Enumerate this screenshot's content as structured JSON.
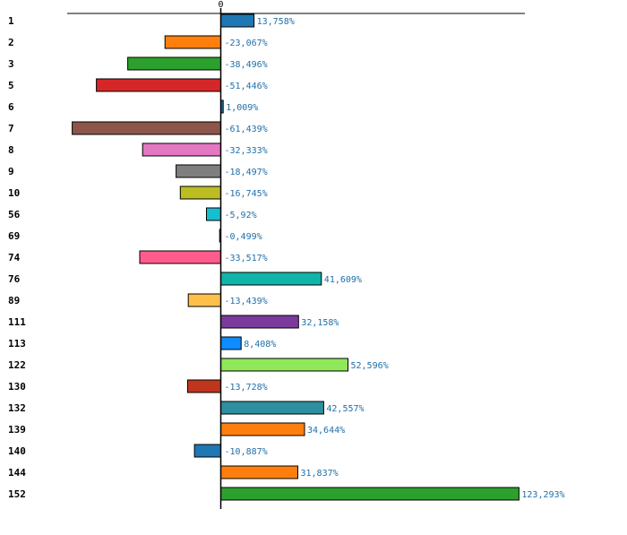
{
  "chart_data": {
    "type": "bar",
    "orientation": "horizontal",
    "title": "",
    "xlabel": "",
    "ylabel": "",
    "axis_tick_label": "0",
    "grid": false,
    "legend": "none",
    "categories": [
      "1",
      "2",
      "3",
      "5",
      "6",
      "7",
      "8",
      "9",
      "10",
      "56",
      "69",
      "74",
      "76",
      "89",
      "111",
      "113",
      "122",
      "130",
      "132",
      "139",
      "140",
      "144",
      "152"
    ],
    "values": [
      13.758,
      -23.067,
      -38.496,
      -51.446,
      1.009,
      -61.439,
      -32.333,
      -18.497,
      -16.745,
      -5.92,
      -0.499,
      -33.517,
      41.609,
      -13.439,
      32.158,
      8.408,
      52.596,
      -13.728,
      42.557,
      34.644,
      -10.887,
      31.837,
      123.293
    ],
    "value_labels": [
      "13,758%",
      "-23,067%",
      "-38,496%",
      "-51,446%",
      "1,009%",
      "-61,439%",
      "-32,333%",
      "-18,497%",
      "-16,745%",
      "-5,92%",
      "-0,499%",
      "-33,517%",
      "41,609%",
      "-13,439%",
      "32,158%",
      "8,408%",
      "52,596%",
      "-13,728%",
      "42,557%",
      "34,644%",
      "-10,887%",
      "31,837%",
      "123,293%"
    ],
    "colors": [
      "#1f77b4",
      "#ff7f0e",
      "#2ca02c",
      "#d62728",
      "#1f77b4",
      "#8c564b",
      "#e377c2",
      "#7f7f7f",
      "#bcbd22",
      "#17becf",
      "#1f77b4",
      "#ff5c8d",
      "#0fb5a8",
      "#ffc04a",
      "#7b3b9c",
      "#0f8cff",
      "#8ee85a",
      "#c0361c",
      "#2d8fa0",
      "#ff7f0e",
      "#1f77b4",
      "#ff7f0e",
      "#2ca02c"
    ],
    "xlim": [
      -64.0,
      124.5
    ]
  }
}
